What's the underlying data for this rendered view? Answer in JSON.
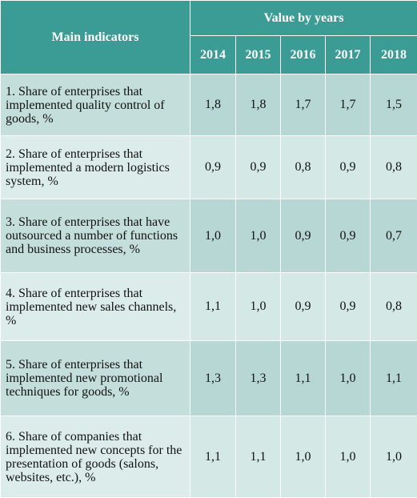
{
  "table": {
    "header_main": "Main indicators",
    "header_group": "Value by years",
    "years": [
      "2014",
      "2015",
      "2016",
      "2017",
      "2018"
    ],
    "rows": [
      {
        "indicator": "1. Share of enterprises that implemented quality control of goods, %",
        "values": [
          "1,8",
          "1,8",
          "1,7",
          "1,7",
          "1,5"
        ]
      },
      {
        "indicator": "2. Share of enterprises that implemented a modern logistics system, %",
        "values": [
          "0,9",
          "0,9",
          "0,8",
          "0,9",
          "0,8"
        ]
      },
      {
        "indicator": "3. Share of enterprises that have outsourced a number of functions and business processes, %",
        "values": [
          "1,0",
          "1,0",
          "0,9",
          "0,9",
          "0,7"
        ]
      },
      {
        "indicator": "4. Share of enterprises that implemented new sales channels, %",
        "values": [
          "1,1",
          "1,0",
          "0,9",
          "0,9",
          "0,8"
        ]
      },
      {
        "indicator": "5. Share of enterprises that implemented new promotional techniques for goods, %",
        "values": [
          "1,3",
          "1,3",
          "1,1",
          "1,0",
          "1,1"
        ]
      },
      {
        "indicator": "6. Share of companies that implemented new concepts for the presentation of goods (salons, websites, etc.), %",
        "values": [
          "1,1",
          "1,1",
          "1,0",
          "1,0",
          "1,0"
        ]
      }
    ]
  },
  "colors": {
    "header_background": "#3a9c94",
    "header_text": "#ffffff",
    "row_odd": "#c3dedb",
    "row_even": "#dcecea"
  }
}
